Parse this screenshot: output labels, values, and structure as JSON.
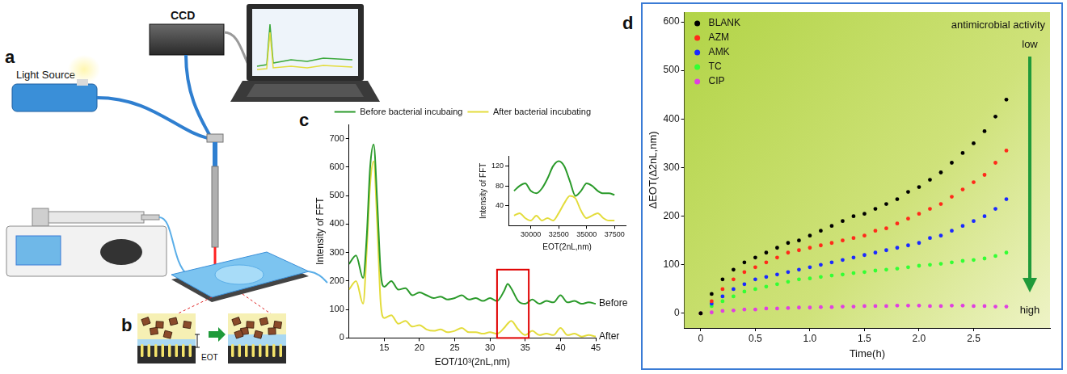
{
  "diagram": {
    "panel": "a",
    "light_source": "Light Source",
    "detector": "CCD",
    "inset_panel": "b",
    "inset_label": "EOT"
  },
  "chart_data": [
    {
      "panel": "c",
      "type": "line",
      "x_label": "EOT/10³(2nL,nm)",
      "y_label": "Intensity of FFT",
      "x": [
        10,
        11,
        12,
        12.5,
        13,
        13.5,
        14,
        14.5,
        15,
        16,
        17,
        18,
        19,
        20,
        21,
        22,
        23,
        24,
        25,
        26,
        27,
        28,
        29,
        30,
        31,
        32,
        32.5,
        33,
        34,
        35,
        36,
        37,
        38,
        39,
        40,
        41,
        42,
        43,
        44,
        45
      ],
      "series": [
        {
          "name": "Before bacterial incubaing",
          "color": "#2a9a2a",
          "values": [
            260,
            290,
            210,
            350,
            600,
            680,
            480,
            230,
            180,
            200,
            170,
            175,
            150,
            160,
            150,
            140,
            145,
            135,
            140,
            150,
            135,
            140,
            130,
            140,
            130,
            165,
            190,
            175,
            130,
            120,
            135,
            120,
            130,
            125,
            150,
            125,
            130,
            120,
            125,
            120
          ]
        },
        {
          "name": "After bacterial incubating",
          "color": "#e3dc3c",
          "values": [
            170,
            200,
            120,
            300,
            540,
            620,
            400,
            120,
            70,
            80,
            50,
            60,
            40,
            45,
            30,
            25,
            30,
            20,
            25,
            35,
            20,
            20,
            15,
            20,
            15,
            35,
            50,
            60,
            30,
            10,
            25,
            10,
            15,
            10,
            35,
            10,
            15,
            5,
            10,
            5
          ]
        }
      ],
      "xlim": [
        10,
        45
      ],
      "ylim": [
        0,
        750
      ],
      "xticks": [
        15,
        20,
        25,
        30,
        35,
        40,
        45
      ],
      "yticks": [
        0,
        100,
        200,
        300,
        400,
        500,
        600,
        700
      ],
      "grid": false,
      "legend": "top-right",
      "annotations": [
        {
          "text": "Before",
          "x": 45,
          "y": 120
        },
        {
          "text": "After",
          "x": 45,
          "y": 5
        }
      ],
      "highlight": {
        "x": [
          31,
          35.5
        ],
        "y": [
          0,
          240
        ],
        "color": "#e00000"
      },
      "inset": {
        "type": "line",
        "x_label": "EOT(2nL,nm)",
        "y_label": "Intensity of FFT",
        "x": [
          28500,
          29000,
          29500,
          30000,
          30500,
          31000,
          31500,
          32000,
          32500,
          33000,
          33500,
          34000,
          34500,
          35000,
          35500,
          36000,
          36500,
          37000,
          37500
        ],
        "series": [
          {
            "color": "#2a9a2a",
            "values": [
              70,
              80,
              85,
              70,
              65,
              75,
              95,
              120,
              130,
              120,
              90,
              60,
              70,
              85,
              80,
              70,
              65,
              65,
              62
            ]
          },
          {
            "color": "#e3dc3c",
            "values": [
              20,
              25,
              15,
              10,
              20,
              10,
              15,
              10,
              25,
              45,
              60,
              55,
              30,
              15,
              20,
              25,
              15,
              10,
              10
            ]
          }
        ],
        "xlim": [
          28000,
          38500
        ],
        "ylim": [
          0,
          140
        ],
        "xticks": [
          30000,
          32500,
          35000,
          37500
        ],
        "yticks": [
          40,
          80,
          120
        ],
        "grid": false
      }
    },
    {
      "panel": "d",
      "type": "scatter",
      "marker": "circle",
      "x_label": "Time(h)",
      "y_label": "ΔEOT(Δ2nL,nm)",
      "x": [
        0,
        0.1,
        0.2,
        0.3,
        0.4,
        0.5,
        0.6,
        0.7,
        0.8,
        0.9,
        1.0,
        1.1,
        1.2,
        1.3,
        1.4,
        1.5,
        1.6,
        1.7,
        1.8,
        1.9,
        2.0,
        2.1,
        2.2,
        2.3,
        2.4,
        2.5,
        2.6,
        2.7,
        2.8
      ],
      "series": [
        {
          "name": "BLANK",
          "color": "#000000",
          "values": [
            0,
            40,
            70,
            90,
            105,
            115,
            125,
            135,
            145,
            150,
            160,
            170,
            180,
            190,
            200,
            205,
            215,
            225,
            235,
            250,
            260,
            275,
            290,
            310,
            330,
            350,
            375,
            405,
            440
          ]
        },
        {
          "name": "AZM",
          "color": "#ff2a1a",
          "values": [
            0,
            25,
            50,
            70,
            85,
            95,
            105,
            115,
            125,
            130,
            135,
            140,
            145,
            150,
            155,
            160,
            170,
            175,
            185,
            195,
            205,
            215,
            225,
            240,
            255,
            270,
            285,
            310,
            335
          ]
        },
        {
          "name": "AMK",
          "color": "#1a2aff",
          "values": [
            0,
            20,
            35,
            50,
            60,
            70,
            75,
            80,
            85,
            90,
            95,
            100,
            105,
            110,
            115,
            120,
            125,
            130,
            135,
            140,
            145,
            155,
            160,
            170,
            180,
            190,
            200,
            215,
            235
          ]
        },
        {
          "name": "TC",
          "color": "#33ff33",
          "values": [
            0,
            15,
            25,
            35,
            45,
            50,
            55,
            60,
            65,
            70,
            72,
            75,
            78,
            80,
            83,
            85,
            88,
            90,
            92,
            95,
            98,
            100,
            102,
            105,
            108,
            110,
            113,
            118,
            125
          ]
        },
        {
          "name": "CIP",
          "color": "#e040e0",
          "values": [
            0,
            2,
            5,
            6,
            8,
            8,
            10,
            10,
            11,
            12,
            12,
            13,
            13,
            14,
            14,
            15,
            15,
            15,
            16,
            16,
            16,
            15,
            15,
            16,
            16,
            15,
            15,
            14,
            14
          ]
        }
      ],
      "xlim": [
        -0.15,
        3.2
      ],
      "ylim": [
        -30,
        620
      ],
      "xticks": [
        0,
        0.5,
        {
          "value": 1,
          "label": "1.0"
        },
        1.5,
        {
          "value": 2,
          "label": "2.0"
        },
        2.5
      ],
      "yticks": [
        0,
        100,
        200,
        300,
        400,
        500,
        600
      ],
      "grid": false,
      "legend": "top-left",
      "annotations": [
        "antimicrobial activity",
        "low",
        "high"
      ]
    }
  ]
}
